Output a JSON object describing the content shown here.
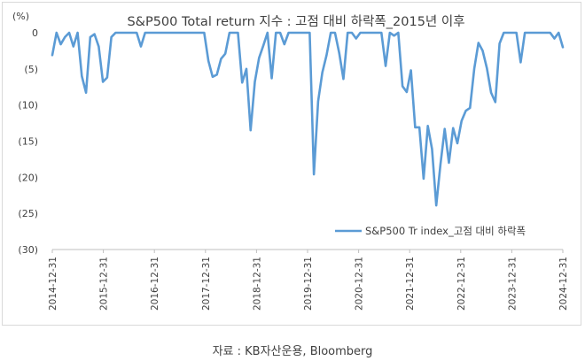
{
  "source_note": "자료 : KB자산운용, Bloomberg",
  "chart_data": {
    "type": "line",
    "title": "S&P500 Total return 지수 : 고점 대비 하락폭_2015년 이후",
    "ylabel": "(%)",
    "legend_placement": "bottom-right",
    "ylim": [
      -30,
      0
    ],
    "yticks": [
      0,
      -5,
      -10,
      -15,
      -20,
      -25,
      -30
    ],
    "ytick_labels": [
      "0",
      "(5)",
      "(10)",
      "(15)",
      "(20)",
      "(25)",
      "(30)"
    ],
    "xtick_labels": [
      "2014-12-31",
      "2015-12-31",
      "2016-12-31",
      "2017-12-31",
      "2018-12-31",
      "2019-12-31",
      "2020-12-31",
      "2021-12-31",
      "2022-12-31",
      "2023-12-31",
      "2024-12-31"
    ],
    "x_start": "2014-12-31",
    "x_end": "2024-12-31",
    "grid": false,
    "color": "#5b9bd5",
    "series": [
      {
        "name": "S&P500 Tr index_고점 대비 하락폭",
        "values": [
          -3.1,
          0,
          -1.6,
          -0.6,
          0,
          -1.9,
          0,
          -6.0,
          -8.3,
          -0.6,
          -0.2,
          -1.9,
          -6.8,
          -6.2,
          -0.6,
          0,
          0,
          0,
          0,
          0,
          0,
          -1.9,
          0,
          0,
          0,
          0,
          0,
          0,
          0,
          0,
          0,
          0,
          0,
          0,
          0,
          0,
          0,
          -3.9,
          -6.1,
          -5.8,
          -3.6,
          -2.9,
          0,
          0,
          0,
          -6.9,
          -5.0,
          -13.5,
          -6.8,
          -3.5,
          -1.8,
          0,
          -6.3,
          0,
          0,
          -1.6,
          0,
          0,
          0,
          0,
          0,
          0,
          -19.6,
          -9.5,
          -5.5,
          -3.1,
          0,
          0,
          -2.8,
          -6.4,
          0,
          0,
          -0.8,
          0,
          0,
          0,
          0,
          0,
          0,
          -4.6,
          0,
          -0.4,
          0,
          -7.4,
          -8.2,
          -5.2,
          -13.1,
          -13.1,
          -20.2,
          -12.9,
          -16.1,
          -23.9,
          -18.2,
          -13.3,
          -18.0,
          -13.2,
          -15.3,
          -12.2,
          -10.8,
          -10.4,
          -5.0,
          -1.4,
          -2.5,
          -4.9,
          -8.3,
          -9.6,
          -1.5,
          0,
          0,
          0,
          0,
          -4.1,
          0,
          0,
          0,
          0,
          0,
          0,
          0,
          -0.8,
          0,
          -2.0
        ]
      }
    ]
  }
}
